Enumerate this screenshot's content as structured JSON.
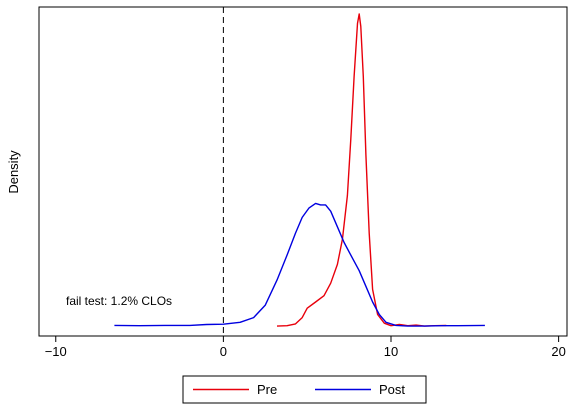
{
  "chart_data": {
    "type": "line",
    "title": "",
    "xlabel": "",
    "ylabel": "Density",
    "xlim": [
      -11,
      20.5
    ],
    "ylim": [
      0,
      1.0
    ],
    "xticks": [
      -10,
      0,
      10,
      20
    ],
    "xtick_labels": [
      "−10",
      "0",
      "10",
      "20"
    ],
    "yticks_shown": false,
    "grid": false,
    "legend_position": "bottom-center",
    "annotation": "fail test: 1.2% CLOs",
    "reference_line": {
      "x": 0,
      "style": "dashed",
      "color": "#000000"
    },
    "series": [
      {
        "name": "Pre",
        "color": "#e8000b",
        "points": [
          [
            3.2,
            0.003
          ],
          [
            3.8,
            0.004
          ],
          [
            4.3,
            0.01
          ],
          [
            4.7,
            0.03
          ],
          [
            5.0,
            0.06
          ],
          [
            5.5,
            0.08
          ],
          [
            6.0,
            0.1
          ],
          [
            6.4,
            0.14
          ],
          [
            6.8,
            0.2
          ],
          [
            7.1,
            0.28
          ],
          [
            7.4,
            0.42
          ],
          [
            7.6,
            0.6
          ],
          [
            7.8,
            0.8
          ],
          [
            8.0,
            0.97
          ],
          [
            8.1,
            1.0
          ],
          [
            8.2,
            0.96
          ],
          [
            8.35,
            0.8
          ],
          [
            8.5,
            0.55
          ],
          [
            8.7,
            0.3
          ],
          [
            8.9,
            0.12
          ],
          [
            9.2,
            0.04
          ],
          [
            9.6,
            0.012
          ],
          [
            10.0,
            0.004
          ],
          [
            10.5,
            0.008
          ],
          [
            11.0,
            0.004
          ],
          [
            11.5,
            0.006
          ],
          [
            12.0,
            0.003
          ],
          [
            12.6,
            0.004
          ],
          [
            13.3,
            0.005
          ]
        ]
      },
      {
        "name": "Post",
        "color": "#0000e0",
        "points": [
          [
            -6.5,
            0.005
          ],
          [
            -5.0,
            0.004
          ],
          [
            -3.5,
            0.005
          ],
          [
            -2.0,
            0.005
          ],
          [
            -1.0,
            0.008
          ],
          [
            0.0,
            0.009
          ],
          [
            1.0,
            0.015
          ],
          [
            1.8,
            0.03
          ],
          [
            2.5,
            0.07
          ],
          [
            3.2,
            0.15
          ],
          [
            3.8,
            0.23
          ],
          [
            4.3,
            0.3
          ],
          [
            4.7,
            0.35
          ],
          [
            5.1,
            0.38
          ],
          [
            5.5,
            0.395
          ],
          [
            5.8,
            0.39
          ],
          [
            6.1,
            0.39
          ],
          [
            6.4,
            0.37
          ],
          [
            6.8,
            0.32
          ],
          [
            7.2,
            0.27
          ],
          [
            7.7,
            0.22
          ],
          [
            8.1,
            0.18
          ],
          [
            8.5,
            0.13
          ],
          [
            8.9,
            0.08
          ],
          [
            9.3,
            0.04
          ],
          [
            9.7,
            0.015
          ],
          [
            10.3,
            0.005
          ],
          [
            11.0,
            0.003
          ],
          [
            12.0,
            0.003
          ],
          [
            13.0,
            0.004
          ],
          [
            14.0,
            0.004
          ],
          [
            15.6,
            0.005
          ]
        ]
      }
    ]
  }
}
